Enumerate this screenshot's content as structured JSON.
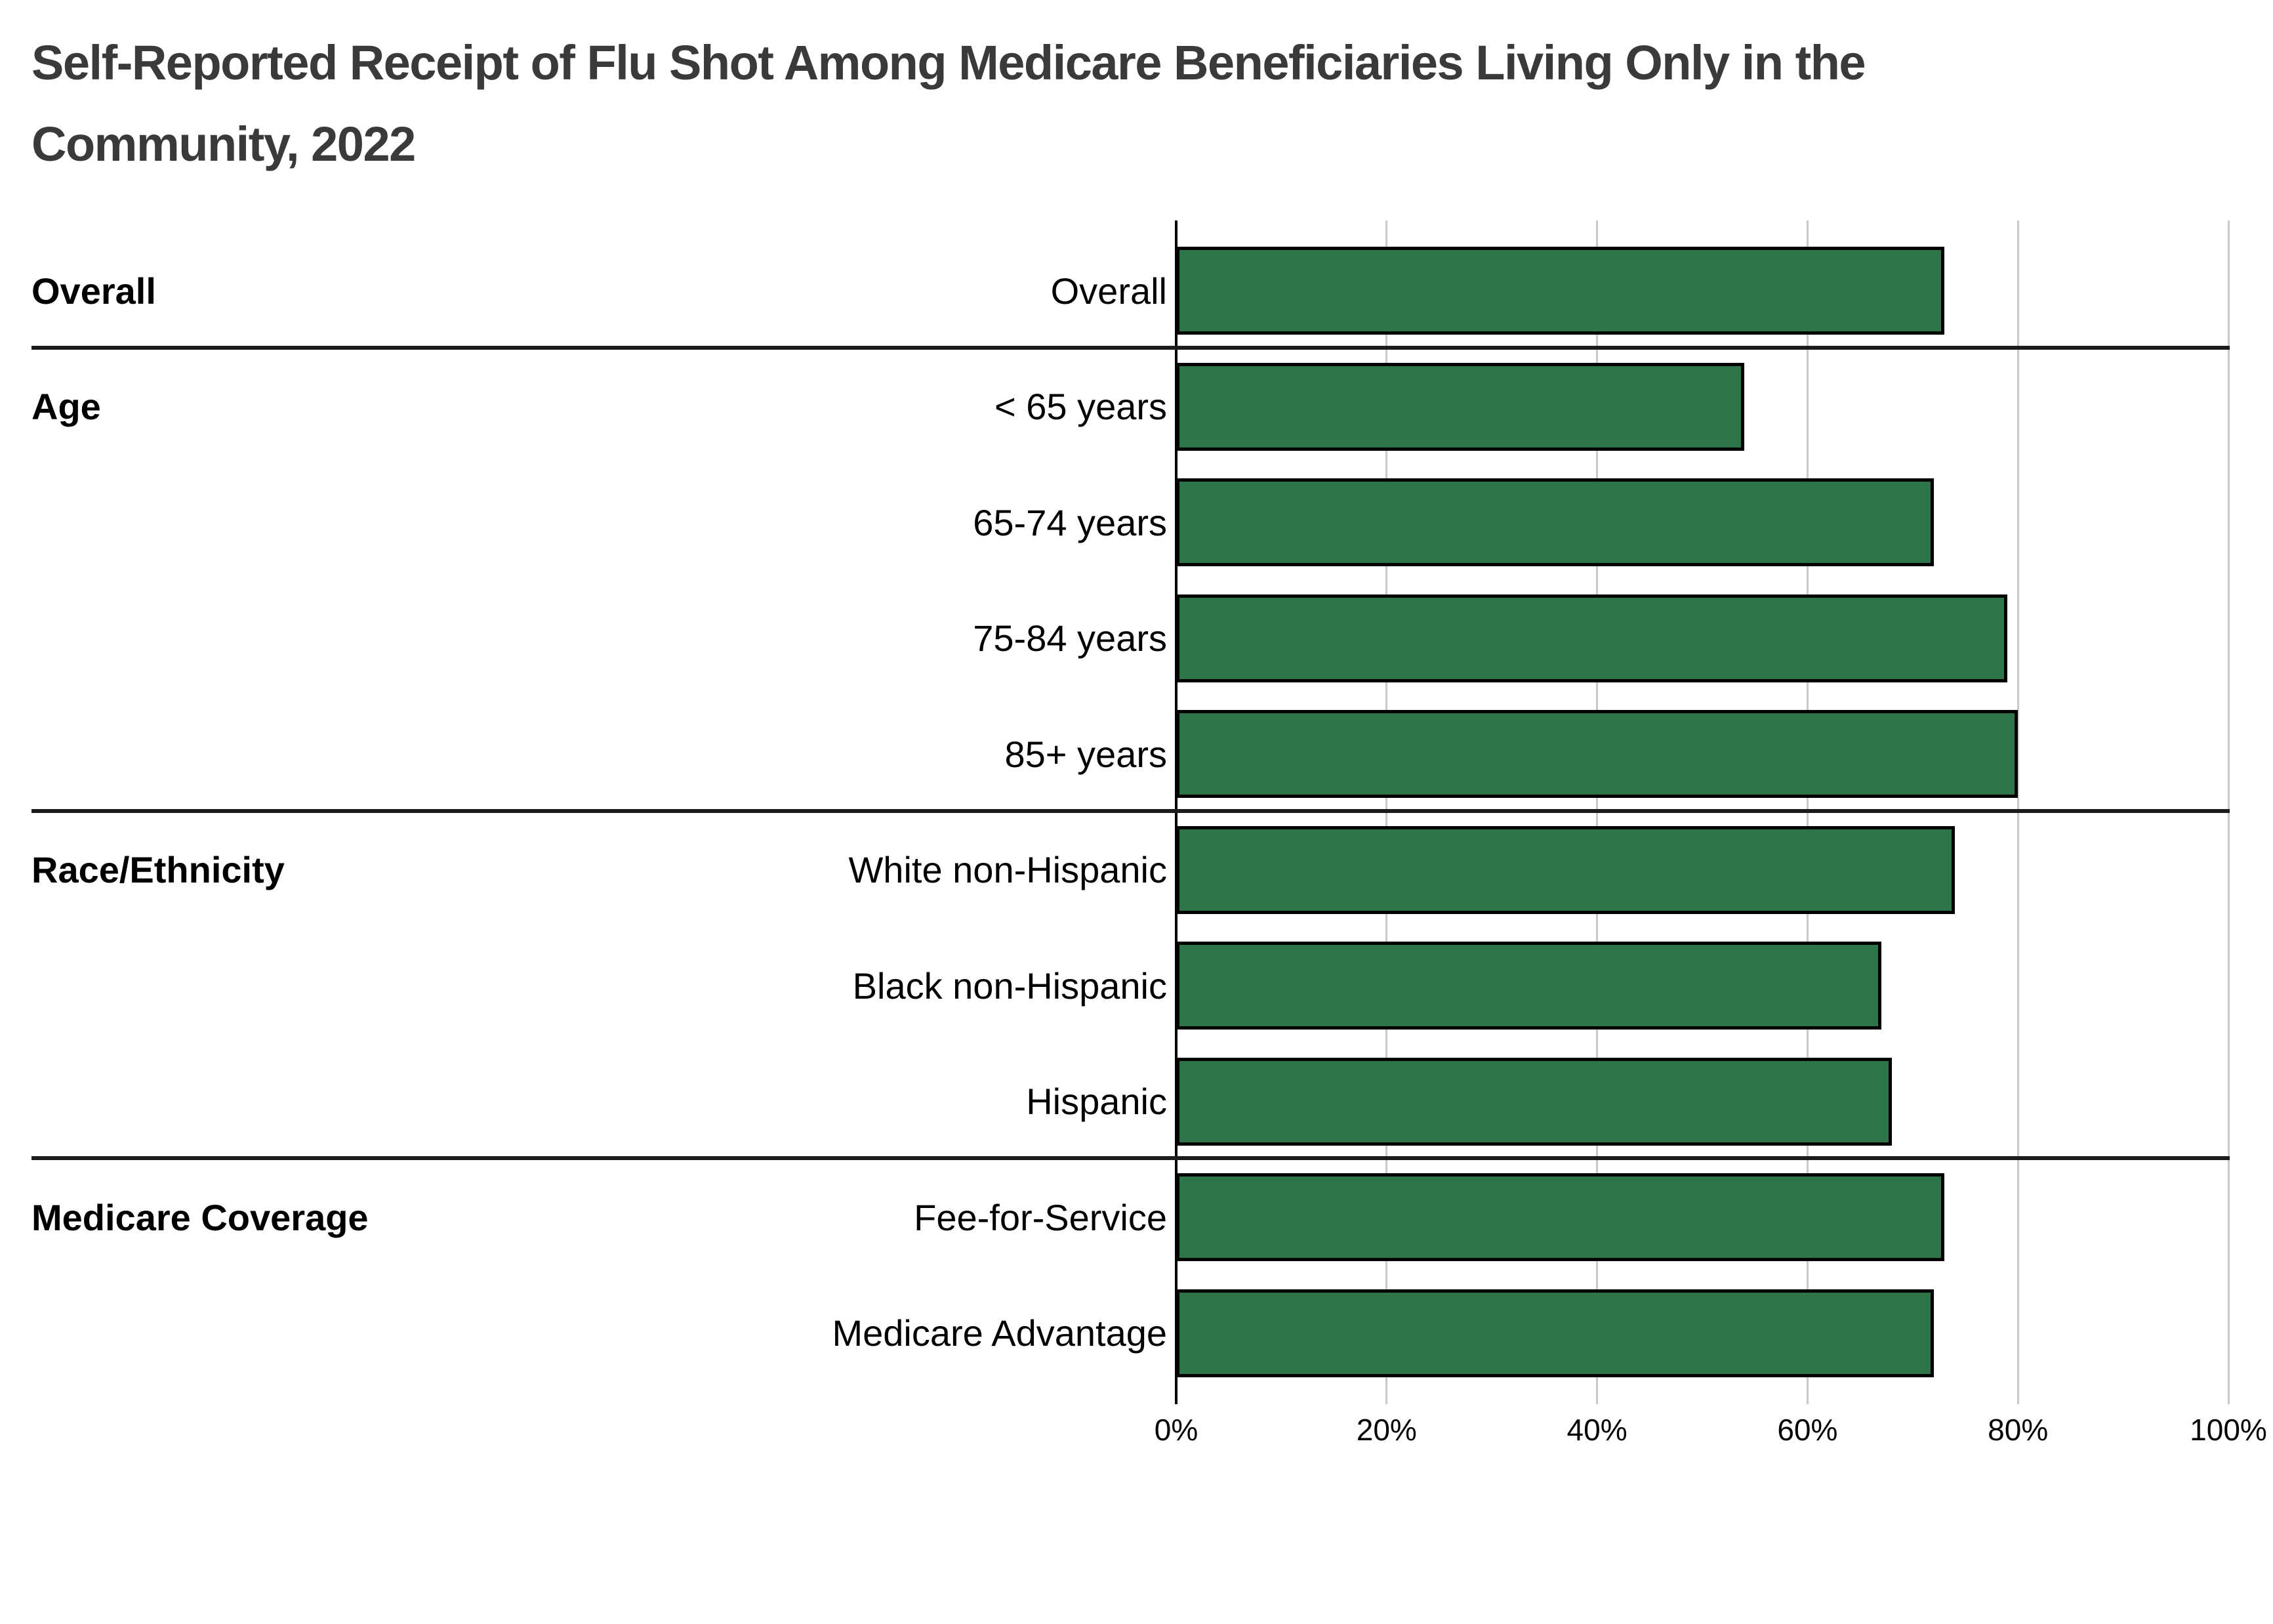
{
  "title_lines": [
    "Self-Reported Receipt of Flu Shot Among Medicare Beneficiaries Living Only in the",
    "Community, 2022"
  ],
  "chart_data": {
    "type": "bar",
    "orientation": "horizontal",
    "title": "Self-Reported Receipt of Flu Shot Among Medicare Beneficiaries Living Only in the Community, 2022",
    "unit": "%",
    "xlim": [
      0,
      100
    ],
    "x_tick_labels": [
      "0%",
      "20%",
      "40%",
      "60%",
      "80%",
      "100%"
    ],
    "x_tick_values": [
      0,
      20,
      40,
      60,
      80,
      100
    ],
    "grid": "vertical-light-gray",
    "bar_color": "#2F7448",
    "bar_border_color": "#000000",
    "groups": [
      {
        "label": "Overall",
        "rows": [
          {
            "label": "Overall",
            "value": 73
          }
        ]
      },
      {
        "label": "Age",
        "rows": [
          {
            "label": "< 65 years",
            "value": 54
          },
          {
            "label": "65-74 years",
            "value": 72
          },
          {
            "label": "75-84 years",
            "value": 79
          },
          {
            "label": "85+ years",
            "value": 80
          }
        ]
      },
      {
        "label": "Race/Ethnicity",
        "rows": [
          {
            "label": "White non-Hispanic",
            "value": 74
          },
          {
            "label": "Black non-Hispanic",
            "value": 67
          },
          {
            "label": "Hispanic",
            "value": 68
          }
        ]
      },
      {
        "label": "Medicare Coverage",
        "rows": [
          {
            "label": "Fee-for-Service",
            "value": 73
          },
          {
            "label": "Medicare Advantage",
            "value": 72
          }
        ]
      }
    ]
  }
}
